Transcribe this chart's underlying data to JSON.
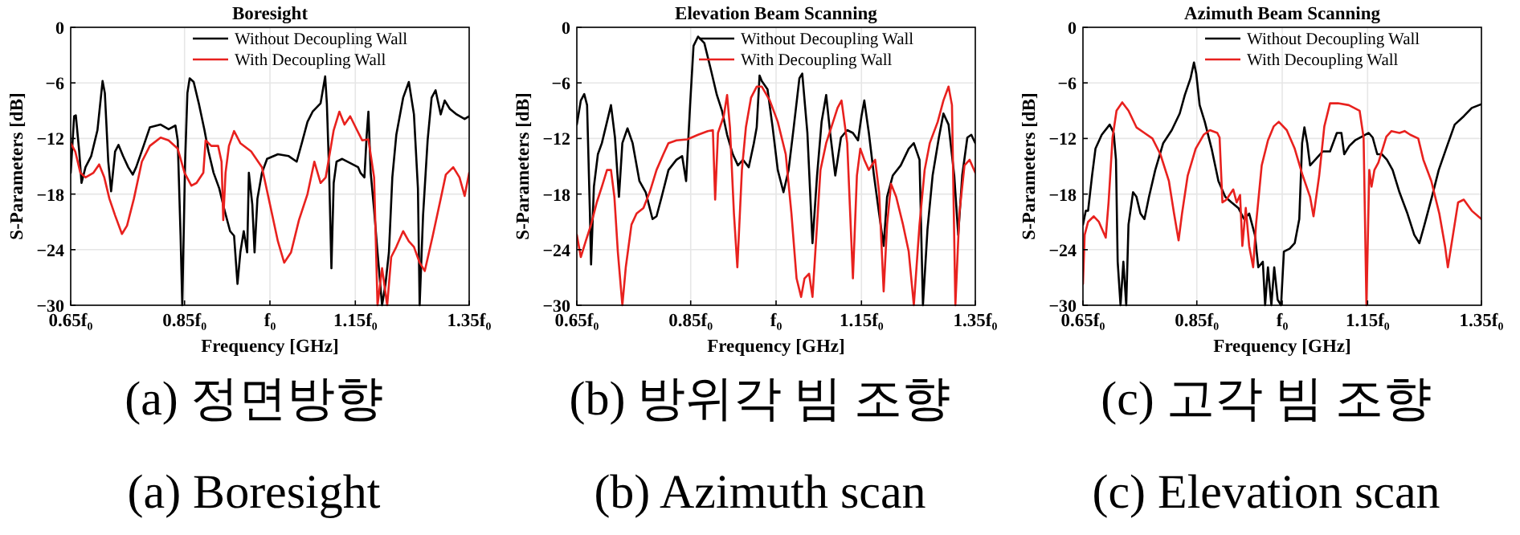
{
  "chart_data": [
    {
      "type": "line",
      "title": "Boresight",
      "xlabel": "Frequency [GHz]",
      "ylabel": "S-Parameters [dB]",
      "xlim": [
        0.65,
        1.35
      ],
      "ylim": [
        -30,
        0
      ],
      "xticks": [
        {
          "value": 0.65,
          "label": "0.65f₀"
        },
        {
          "value": 0.85,
          "label": "0.85f₀"
        },
        {
          "value": 1,
          "label": "f₀"
        },
        {
          "value": 1.15,
          "label": "1.15f₀"
        },
        {
          "value": 1.35,
          "label": "1.35f₀"
        }
      ],
      "yticks": [
        -30,
        -24,
        -18,
        -12,
        -6,
        0
      ],
      "grid": true,
      "legend": "top right",
      "annotations": [
        "(a) 정면방향",
        "(a) Boresight"
      ],
      "series": [
        {
          "name": "Without Decoupling Wall",
          "color": "#000000",
          "x": [
            0.65,
            0.656,
            0.659,
            0.665,
            0.669,
            0.676,
            0.686,
            0.697,
            0.706,
            0.71,
            0.716,
            0.721,
            0.728,
            0.734,
            0.742,
            0.751,
            0.759,
            0.765,
            0.778,
            0.789,
            0.808,
            0.822,
            0.834,
            0.838,
            0.843,
            0.846,
            0.851,
            0.855,
            0.859,
            0.866,
            0.875,
            0.885,
            0.892,
            0.901,
            0.911,
            0.92,
            0.93,
            0.937,
            0.943,
            0.948,
            0.954,
            0.96,
            0.963,
            0.969,
            0.973,
            0.978,
            0.986,
            0.995,
            1.014,
            1.033,
            1.047,
            1.056,
            1.066,
            1.075,
            1.089,
            1.097,
            1.1,
            1.104,
            1.108,
            1.112,
            1.117,
            1.127,
            1.155,
            1.159,
            1.166,
            1.17,
            1.173,
            1.177,
            1.183,
            1.189,
            1.197,
            1.203,
            1.209,
            1.215,
            1.222,
            1.234,
            1.244,
            1.253,
            1.26,
            1.263,
            1.269,
            1.277,
            1.284,
            1.291,
            1.3,
            1.307,
            1.316,
            1.328,
            1.342,
            1.35
          ],
          "values": [
            -15.7,
            -9.6,
            -9.5,
            -13.4,
            -16.8,
            -15.1,
            -13.9,
            -11.1,
            -5.8,
            -7.1,
            -14.5,
            -17.7,
            -13.4,
            -12.7,
            -13.9,
            -15.1,
            -15.9,
            -15.1,
            -12.8,
            -10.8,
            -10.5,
            -11.0,
            -10.6,
            -12.2,
            -22.5,
            -30,
            -14.5,
            -7.1,
            -5.5,
            -5.9,
            -8.2,
            -11.1,
            -13.4,
            -15.7,
            -17.4,
            -19.7,
            -22.0,
            -22.5,
            -27.7,
            -24.3,
            -22.0,
            -24.3,
            -15.7,
            -19.1,
            -24.3,
            -18.5,
            -15.7,
            -14.2,
            -13.7,
            -13.9,
            -14.5,
            -12.5,
            -10.2,
            -9.1,
            -8.2,
            -5.3,
            -8.2,
            -15.7,
            -26.0,
            -16.8,
            -14.5,
            -14.2,
            -15.1,
            -15.7,
            -16.2,
            -11.6,
            -9.1,
            -15.7,
            -19.7,
            -24.3,
            -30,
            -27.7,
            -24.3,
            -16.2,
            -11.6,
            -7.6,
            -5.9,
            -9.4,
            -17.4,
            -30,
            -20.3,
            -12.2,
            -7.6,
            -6.8,
            -9.4,
            -7.9,
            -8.8,
            -9.4,
            -9.9,
            -9.6
          ]
        },
        {
          "name": "With Decoupling Wall",
          "color": "#e8211e",
          "x": [
            0.65,
            0.658,
            0.667,
            0.676,
            0.69,
            0.7,
            0.709,
            0.718,
            0.728,
            0.74,
            0.749,
            0.761,
            0.775,
            0.789,
            0.808,
            0.822,
            0.838,
            0.85,
            0.862,
            0.871,
            0.883,
            0.887,
            0.897,
            0.909,
            0.915,
            0.918,
            0.922,
            0.928,
            0.937,
            0.948,
            0.967,
            0.986,
            1.0,
            1.014,
            1.025,
            1.037,
            1.051,
            1.066,
            1.078,
            1.089,
            1.098,
            1.112,
            1.122,
            1.131,
            1.141,
            1.153,
            1.162,
            1.173,
            1.183,
            1.189,
            1.197,
            1.206,
            1.213,
            1.222,
            1.234,
            1.244,
            1.253,
            1.263,
            1.272,
            1.286,
            1.3,
            1.309,
            1.322,
            1.333,
            1.342,
            1.35
          ],
          "values": [
            -12.5,
            -13.4,
            -15.7,
            -16.2,
            -15.7,
            -14.8,
            -16.2,
            -18.5,
            -20.3,
            -22.3,
            -21.4,
            -18.5,
            -14.5,
            -12.8,
            -11.9,
            -12.2,
            -13.1,
            -15.7,
            -17.1,
            -16.8,
            -15.7,
            -12.2,
            -12.8,
            -12.8,
            -14.5,
            -20.8,
            -15.7,
            -12.8,
            -11.2,
            -12.5,
            -13.4,
            -15.1,
            -19.1,
            -23.1,
            -25.4,
            -24.3,
            -20.8,
            -18.0,
            -14.5,
            -16.8,
            -16.2,
            -11.1,
            -9.1,
            -10.5,
            -9.6,
            -11.1,
            -12.2,
            -12.1,
            -16.2,
            -30,
            -26.0,
            -30,
            -24.8,
            -23.7,
            -22.0,
            -23.1,
            -23.7,
            -25.4,
            -26.3,
            -22.5,
            -18.5,
            -15.9,
            -15.1,
            -16.2,
            -18.2,
            -15.7
          ]
        }
      ]
    },
    {
      "type": "line",
      "title": "Elevation Beam Scanning",
      "xlabel": "Frequency [GHz]",
      "ylabel": "S-Parameters [dB]",
      "xlim": [
        0.65,
        1.35
      ],
      "ylim": [
        -30,
        0
      ],
      "xticks": [
        {
          "value": 0.65,
          "label": "0.65f₀"
        },
        {
          "value": 0.85,
          "label": "0.85f₀"
        },
        {
          "value": 1,
          "label": "f₀"
        },
        {
          "value": 1.15,
          "label": "1.15f₀"
        },
        {
          "value": 1.35,
          "label": "1.35f₀"
        }
      ],
      "yticks": [
        -30,
        -24,
        -18,
        -12,
        -6,
        0
      ],
      "grid": true,
      "legend": "top right",
      "annotations": [
        "(b) 방위각 빔 조향",
        "(b) Azimuth scan"
      ],
      "series": [
        {
          "name": "Without Decoupling Wall",
          "color": "#000000",
          "x": [
            0.65,
            0.657,
            0.663,
            0.668,
            0.673,
            0.675,
            0.68,
            0.687,
            0.694,
            0.703,
            0.71,
            0.717,
            0.724,
            0.73,
            0.739,
            0.748,
            0.76,
            0.771,
            0.783,
            0.79,
            0.799,
            0.811,
            0.825,
            0.835,
            0.842,
            0.849,
            0.855,
            0.863,
            0.874,
            0.886,
            0.896,
            0.905,
            0.914,
            0.924,
            0.933,
            0.942,
            0.952,
            0.961,
            0.966,
            0.971,
            0.975,
            0.985,
            0.994,
            1.003,
            1.013,
            1.022,
            1.031,
            1.041,
            1.046,
            1.055,
            1.064,
            1.072,
            1.08,
            1.088,
            1.095,
            1.104,
            1.114,
            1.125,
            1.135,
            1.144,
            1.15,
            1.155,
            1.163,
            1.172,
            1.181,
            1.189,
            1.195,
            1.205,
            1.219,
            1.233,
            1.242,
            1.252,
            1.258,
            1.266,
            1.275,
            1.286,
            1.294,
            1.303,
            1.313,
            1.32,
            1.327,
            1.336,
            1.343,
            1.35
          ],
          "values": [
            -10.5,
            -7.9,
            -7.2,
            -8.4,
            -20.1,
            -25.6,
            -17.2,
            -13.7,
            -12.5,
            -10.2,
            -8.4,
            -11.9,
            -18.3,
            -12.5,
            -10.9,
            -12.5,
            -16.6,
            -17.8,
            -20.7,
            -20.4,
            -18.3,
            -15.4,
            -14.3,
            -13.9,
            -16.6,
            -8.4,
            -2.0,
            -1.0,
            -1.7,
            -4.7,
            -7.3,
            -9.0,
            -11.6,
            -13.7,
            -14.9,
            -14.3,
            -15.1,
            -12.5,
            -10.8,
            -5.2,
            -5.8,
            -6.7,
            -10.8,
            -15.4,
            -17.8,
            -15.4,
            -10.8,
            -5.5,
            -5.0,
            -11.4,
            -23.3,
            -16.0,
            -10.2,
            -7.3,
            -11.4,
            -16.0,
            -11.9,
            -11.1,
            -11.4,
            -12.2,
            -9.6,
            -7.9,
            -11.4,
            -16.0,
            -20.1,
            -23.6,
            -18.3,
            -16.0,
            -14.9,
            -13.1,
            -12.5,
            -14.3,
            -30,
            -21.8,
            -16.0,
            -11.9,
            -9.3,
            -10.5,
            -16.0,
            -22.4,
            -16.0,
            -11.9,
            -11.6,
            -12.5
          ]
        },
        {
          "name": "With Decoupling Wall",
          "color": "#e8211e",
          "x": [
            0.65,
            0.657,
            0.666,
            0.675,
            0.685,
            0.694,
            0.703,
            0.71,
            0.716,
            0.722,
            0.73,
            0.736,
            0.746,
            0.755,
            0.767,
            0.778,
            0.79,
            0.802,
            0.811,
            0.825,
            0.844,
            0.863,
            0.88,
            0.889,
            0.893,
            0.898,
            0.908,
            0.914,
            0.919,
            0.926,
            0.932,
            0.94,
            0.947,
            0.956,
            0.966,
            0.975,
            0.989,
            1.003,
            1.017,
            1.027,
            1.036,
            1.044,
            1.05,
            1.058,
            1.064,
            1.072,
            1.078,
            1.088,
            1.097,
            1.108,
            1.115,
            1.125,
            1.135,
            1.142,
            1.148,
            1.155,
            1.163,
            1.174,
            1.181,
            1.189,
            1.195,
            1.202,
            1.211,
            1.223,
            1.233,
            1.242,
            1.252,
            1.261,
            1.27,
            1.284,
            1.294,
            1.303,
            1.309,
            1.315,
            1.322,
            1.331,
            1.34,
            1.35
          ],
          "values": [
            -22.4,
            -24.8,
            -23.0,
            -21.3,
            -18.9,
            -17.2,
            -15.4,
            -15.4,
            -18.3,
            -24.2,
            -30,
            -25.9,
            -21.3,
            -20.1,
            -19.5,
            -17.8,
            -15.4,
            -13.7,
            -12.5,
            -12.2,
            -12.1,
            -11.6,
            -11.2,
            -11.1,
            -18.6,
            -11.4,
            -9.6,
            -7.3,
            -10.8,
            -20.1,
            -25.9,
            -15.4,
            -10.8,
            -7.6,
            -6.4,
            -6.4,
            -7.9,
            -10.2,
            -13.7,
            -20.1,
            -27.1,
            -29.1,
            -27.1,
            -26.6,
            -29.1,
            -21.3,
            -15.4,
            -12.5,
            -10.8,
            -8.7,
            -7.9,
            -12.5,
            -27.1,
            -16.0,
            -13.1,
            -14.3,
            -15.4,
            -14.3,
            -17.8,
            -28.5,
            -21.3,
            -16.9,
            -18.3,
            -21.3,
            -24.2,
            -30,
            -21.3,
            -15.4,
            -12.5,
            -10.2,
            -7.9,
            -6.4,
            -8.4,
            -30,
            -20.1,
            -14.9,
            -14.3,
            -15.7
          ]
        }
      ]
    },
    {
      "type": "line",
      "title": "Azimuth Beam Scanning",
      "xlabel": "Frequency [GHz]",
      "ylabel": "S-Parameters [dB]",
      "xlim": [
        0.65,
        1.35
      ],
      "ylim": [
        -30,
        0
      ],
      "xticks": [
        {
          "value": 0.65,
          "label": "0.65f₀"
        },
        {
          "value": 0.85,
          "label": "0.85f₀"
        },
        {
          "value": 1,
          "label": "f₀"
        },
        {
          "value": 1.15,
          "label": "1.15f₀"
        },
        {
          "value": 1.35,
          "label": "1.35f₀"
        }
      ],
      "yticks": [
        -30,
        -24,
        -18,
        -12,
        -6,
        0
      ],
      "grid": true,
      "legend": "top right",
      "annotations": [
        "(c) 고각 빔 조향",
        "(c) Elevation scan"
      ],
      "series": [
        {
          "name": "Without Decoupling Wall",
          "color": "#000000",
          "x": [
            0.65,
            0.655,
            0.659,
            0.666,
            0.672,
            0.683,
            0.697,
            0.704,
            0.708,
            0.711,
            0.716,
            0.721,
            0.726,
            0.73,
            0.738,
            0.744,
            0.751,
            0.758,
            0.766,
            0.777,
            0.791,
            0.806,
            0.82,
            0.829,
            0.839,
            0.845,
            0.849,
            0.855,
            0.864,
            0.876,
            0.888,
            0.9,
            0.911,
            0.923,
            0.933,
            0.942,
            0.952,
            0.958,
            0.966,
            0.97,
            0.975,
            0.981,
            0.986,
            0.992,
            0.998,
            1.003,
            1.013,
            1.022,
            1.03,
            1.035,
            1.039,
            1.044,
            1.049,
            1.058,
            1.071,
            1.084,
            1.096,
            1.104,
            1.109,
            1.118,
            1.128,
            1.14,
            1.152,
            1.159,
            1.167,
            1.175,
            1.184,
            1.194,
            1.206,
            1.22,
            1.232,
            1.241,
            1.25,
            1.263,
            1.275,
            1.288,
            1.303,
            1.319,
            1.333,
            1.35
          ],
          "values": [
            -21.3,
            -19.8,
            -19.8,
            -16.0,
            -13.1,
            -11.6,
            -10.5,
            -11.4,
            -14.3,
            -25.3,
            -30,
            -25.3,
            -30,
            -21.3,
            -17.8,
            -18.3,
            -20.1,
            -20.7,
            -18.3,
            -15.4,
            -12.5,
            -11.1,
            -9.3,
            -7.3,
            -5.5,
            -3.8,
            -5.0,
            -8.4,
            -10.2,
            -13.1,
            -16.6,
            -18.3,
            -18.9,
            -19.5,
            -20.7,
            -20.1,
            -22.4,
            -25.9,
            -25.3,
            -30,
            -25.9,
            -30,
            -25.9,
            -29.4,
            -30,
            -24.2,
            -23.9,
            -23.3,
            -20.7,
            -12.5,
            -10.8,
            -12.5,
            -14.9,
            -14.3,
            -13.4,
            -13.4,
            -11.4,
            -11.4,
            -13.7,
            -12.8,
            -12.2,
            -11.8,
            -11.4,
            -11.9,
            -13.7,
            -13.7,
            -14.3,
            -15.4,
            -17.8,
            -20.1,
            -22.4,
            -23.3,
            -21.3,
            -18.3,
            -15.4,
            -13.1,
            -10.5,
            -9.6,
            -8.7,
            -8.3
          ]
        },
        {
          "name": "With Decoupling Wall",
          "color": "#e8211e",
          "x": [
            0.65,
            0.653,
            0.659,
            0.669,
            0.678,
            0.69,
            0.695,
            0.702,
            0.709,
            0.719,
            0.73,
            0.744,
            0.758,
            0.772,
            0.786,
            0.801,
            0.81,
            0.818,
            0.824,
            0.834,
            0.848,
            0.862,
            0.873,
            0.886,
            0.89,
            0.895,
            0.902,
            0.914,
            0.92,
            0.926,
            0.93,
            0.936,
            0.942,
            0.949,
            0.954,
            0.964,
            0.975,
            0.985,
            0.994,
            1.008,
            1.022,
            1.036,
            1.049,
            1.055,
            1.065,
            1.074,
            1.084,
            1.098,
            1.117,
            1.136,
            1.143,
            1.148,
            1.153,
            1.157,
            1.162,
            1.169,
            1.175,
            1.183,
            1.192,
            1.206,
            1.215,
            1.225,
            1.239,
            1.248,
            1.262,
            1.276,
            1.286,
            1.291,
            1.3,
            1.309,
            1.319,
            1.333,
            1.35
          ],
          "values": [
            -27.7,
            -22.4,
            -21.0,
            -20.4,
            -21.0,
            -22.7,
            -18.9,
            -11.9,
            -9.0,
            -8.1,
            -9.0,
            -10.8,
            -11.4,
            -12.0,
            -13.7,
            -16.6,
            -20.1,
            -23.0,
            -20.1,
            -16.0,
            -13.1,
            -11.6,
            -11.1,
            -11.4,
            -11.9,
            -18.9,
            -18.6,
            -17.5,
            -18.9,
            -18.1,
            -23.6,
            -19.5,
            -23.6,
            -25.9,
            -21.3,
            -14.9,
            -12.2,
            -10.7,
            -10.2,
            -11.1,
            -13.1,
            -16.0,
            -18.3,
            -20.4,
            -16.0,
            -10.7,
            -8.2,
            -8.2,
            -8.4,
            -9.0,
            -11.9,
            -30,
            -15.4,
            -17.2,
            -15.4,
            -14.6,
            -13.4,
            -11.8,
            -11.2,
            -11.4,
            -11.2,
            -11.6,
            -12.0,
            -14.3,
            -16.6,
            -20.1,
            -23.6,
            -25.9,
            -22.4,
            -18.9,
            -18.6,
            -19.8,
            -20.7
          ]
        }
      ]
    }
  ]
}
